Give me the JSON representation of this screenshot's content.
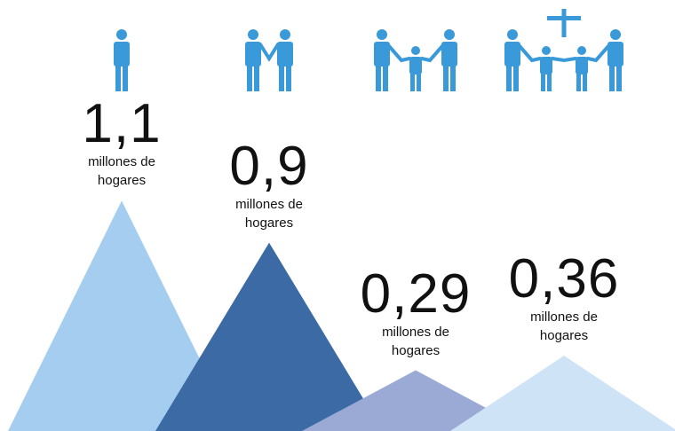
{
  "chart_data": {
    "type": "mountain",
    "values": [
      1.1,
      0.9,
      0.29,
      0.36
    ],
    "value_labels": [
      "1,1",
      "0,9",
      "0,29",
      "0,36"
    ],
    "unit": "millones de hogares",
    "colors": [
      "#a4cdf0",
      "#3b6aa4",
      "#9aaad4",
      "#cfe3f7"
    ]
  }
}
